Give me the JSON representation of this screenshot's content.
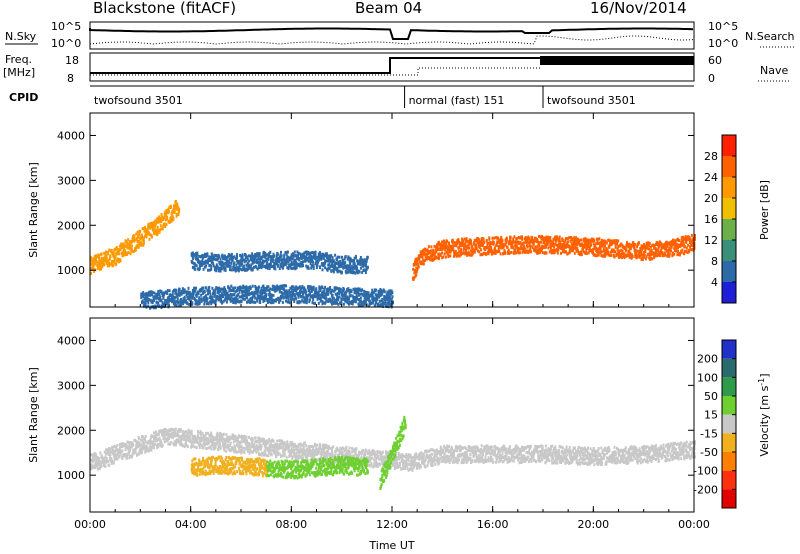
{
  "header": {
    "station": "Blackstone (fitACF)",
    "beam": "Beam 04",
    "date": "16/Nov/2014"
  },
  "sky_panel": {
    "left_label": "N.Sky",
    "right_label": "N.Search",
    "left_ticks": [
      "10^5",
      "10^0"
    ],
    "right_ticks": [
      "10^5",
      "10^0"
    ]
  },
  "freq_panel": {
    "left_label_1": "Freq.",
    "left_label_2": "[MHz]",
    "right_label": "Nave",
    "left_ticks": [
      "18",
      "8"
    ],
    "right_ticks": [
      "60",
      "0"
    ]
  },
  "cpid_panel": {
    "label": "CPID",
    "modes": [
      {
        "name": "twofsound 3501",
        "start_hour": 0,
        "end_hour": 12.5
      },
      {
        "name": "normal (fast) 151",
        "start_hour": 12.5,
        "end_hour": 18
      },
      {
        "name": "twofsound 3501",
        "start_hour": 18,
        "end_hour": 24
      }
    ]
  },
  "chart_data": [
    {
      "type": "heatmap",
      "name": "power",
      "xlabel": "",
      "ylabel": "Slant Range [km]",
      "xlim": [
        0,
        24
      ],
      "ylim": [
        180,
        4500
      ],
      "yticks": [
        1000,
        2000,
        3000,
        4000
      ],
      "xticks": [
        0,
        4,
        8,
        12,
        16,
        20,
        24
      ],
      "colorbar": {
        "label": "Power [dB]",
        "ticks": [
          "4",
          "8",
          "12",
          "16",
          "20",
          "24",
          "28"
        ],
        "range": [
          0,
          32
        ],
        "colors": [
          "#1f1fd8",
          "#2c6aa8",
          "#3a8f78",
          "#6cb04c",
          "#f0c000",
          "#ff9900",
          "#ff6000",
          "#ff2000"
        ]
      },
      "features": [
        {
          "label": "ionospheric band",
          "hours": [
            0,
            0.5,
            1,
            1.5,
            2,
            2.5,
            3,
            3.5
          ],
          "range_km": [
            1150,
            1250,
            1350,
            1550,
            1750,
            1950,
            2200,
            2450
          ],
          "power_db": 20
        },
        {
          "label": "ionospheric band",
          "hours": [
            12.8,
            13.2,
            14,
            15,
            16,
            17,
            18,
            19,
            20,
            21,
            22,
            23,
            24
          ],
          "range_km": [
            1000,
            1350,
            1500,
            1550,
            1580,
            1600,
            1600,
            1580,
            1550,
            1500,
            1450,
            1500,
            1650
          ],
          "power_db": 24
        },
        {
          "label": "weak scatter",
          "hours": [
            4,
            5,
            6,
            7,
            8,
            9,
            10,
            11
          ],
          "range_km": [
            1250,
            1200,
            1200,
            1250,
            1250,
            1250,
            1150,
            1150
          ],
          "power_db": 6
        },
        {
          "label": "ground scatter",
          "hours": [
            2,
            4,
            6,
            8,
            10,
            12
          ],
          "range_km": [
            350,
            450,
            500,
            500,
            450,
            400
          ],
          "power_db": 5
        }
      ]
    },
    {
      "type": "heatmap",
      "name": "velocity",
      "xlabel": "Time UT",
      "ylabel": "Slant Range [km]",
      "xlim": [
        0,
        24
      ],
      "ylim": [
        180,
        4500
      ],
      "yticks": [
        1000,
        2000,
        3000,
        4000
      ],
      "xticks": [
        0,
        4,
        8,
        12,
        16,
        20,
        24
      ],
      "xtick_labels": [
        "00:00",
        "04:00",
        "08:00",
        "12:00",
        "16:00",
        "20:00",
        "00:00"
      ],
      "colorbar": {
        "label": "Velocity [m s^-1]",
        "ticks": [
          "200",
          "100",
          "50",
          "15",
          "-15",
          "-50",
          "-100",
          "-200"
        ],
        "colors": [
          "#2030c8",
          "#2a6a6a",
          "#2f9a4a",
          "#6ed030",
          "#c8c8c8",
          "#f0b020",
          "#ff8000",
          "#ff3010",
          "#e00000"
        ]
      },
      "features": [
        {
          "label": "grey band",
          "hours": [
            0,
            1,
            2,
            3,
            12.8,
            14,
            16,
            18,
            20,
            22,
            24
          ],
          "range_km": [
            1300,
            1500,
            1700,
            1900,
            1300,
            1500,
            1500,
            1500,
            1450,
            1500,
            1600
          ],
          "velocity": 0
        },
        {
          "label": "orange scatter",
          "hours": [
            4,
            5,
            6,
            7
          ],
          "range_km": [
            1200,
            1250,
            1250,
            1200
          ],
          "velocity": -40
        },
        {
          "label": "green scatter",
          "hours": [
            7,
            8,
            9,
            10,
            11
          ],
          "range_km": [
            1200,
            1150,
            1200,
            1250,
            1200
          ],
          "velocity": 30
        },
        {
          "label": "green surge",
          "hours": [
            11.5,
            12,
            12.5
          ],
          "range_km": [
            900,
            1500,
            2200
          ],
          "velocity": 40
        }
      ]
    }
  ],
  "colors": {
    "frame": "#000000",
    "background": "#ffffff"
  }
}
